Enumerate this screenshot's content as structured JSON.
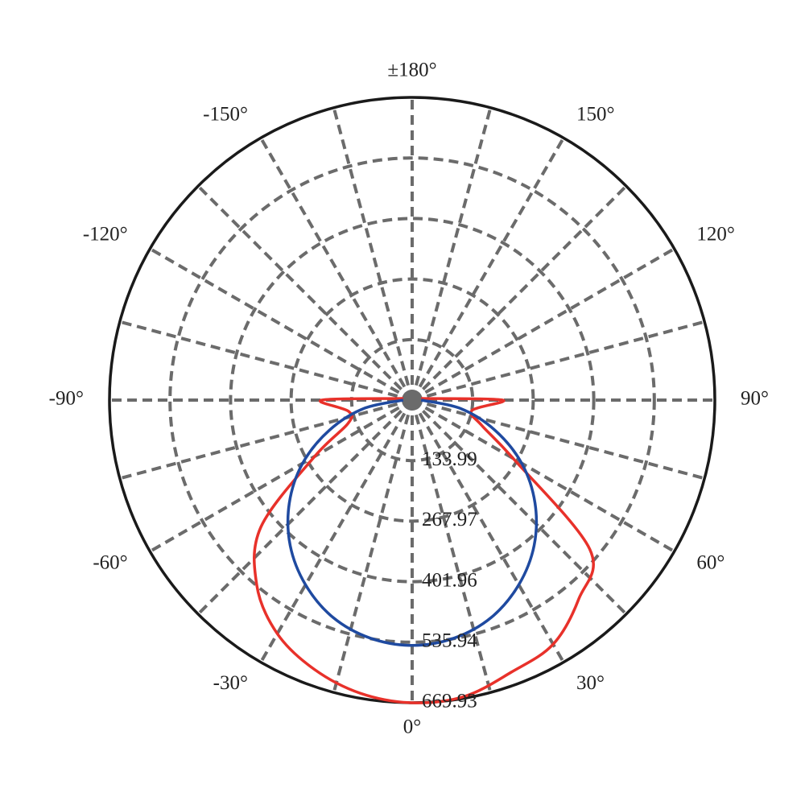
{
  "chart_data": {
    "type": "polar",
    "rlim": [
      0,
      669.93
    ],
    "rticks": [
      133.99,
      267.97,
      401.96,
      535.94,
      669.93
    ],
    "xticks": [
      {
        "value": -150,
        "label": "-150°"
      },
      {
        "value": -120,
        "label": "-120°"
      },
      {
        "value": -90,
        "label": "-90°"
      },
      {
        "value": -60,
        "label": "-60°"
      },
      {
        "value": -30,
        "label": "-30°"
      },
      {
        "value": 0,
        "label": "0°"
      },
      {
        "value": 30,
        "label": "30°"
      },
      {
        "value": 60,
        "label": "60°"
      },
      {
        "value": 90,
        "label": "90°"
      },
      {
        "value": 120,
        "label": "120°"
      },
      {
        "value": 150,
        "label": "150°"
      },
      {
        "value": 180,
        "label": "±180°"
      }
    ],
    "grid": true,
    "series": [
      {
        "color": "#e8312a",
        "x": [
          -100,
          -90,
          -80,
          -70,
          -60,
          -50,
          -40,
          -30,
          -20,
          -10,
          0,
          10,
          20,
          30,
          40,
          50,
          60,
          70,
          80,
          90,
          100
        ],
        "values": [
          20,
          200,
          143,
          151,
          249,
          437,
          535,
          597,
          634,
          659,
          669.93,
          666,
          641,
          624,
          574,
          513,
          258,
          164,
          134,
          200,
          20
        ]
      },
      {
        "color": "#1f4aa0",
        "x": [
          -90,
          -80,
          -70,
          -60,
          -50,
          -40,
          -30,
          -20,
          -10,
          0,
          10,
          20,
          30,
          40,
          50,
          60,
          70,
          80,
          90
        ],
        "values": [
          20,
          110,
          195,
          280,
          355,
          420,
          472,
          512,
          535,
          543,
          535,
          512,
          472,
          420,
          355,
          280,
          195,
          110,
          20
        ]
      }
    ]
  }
}
